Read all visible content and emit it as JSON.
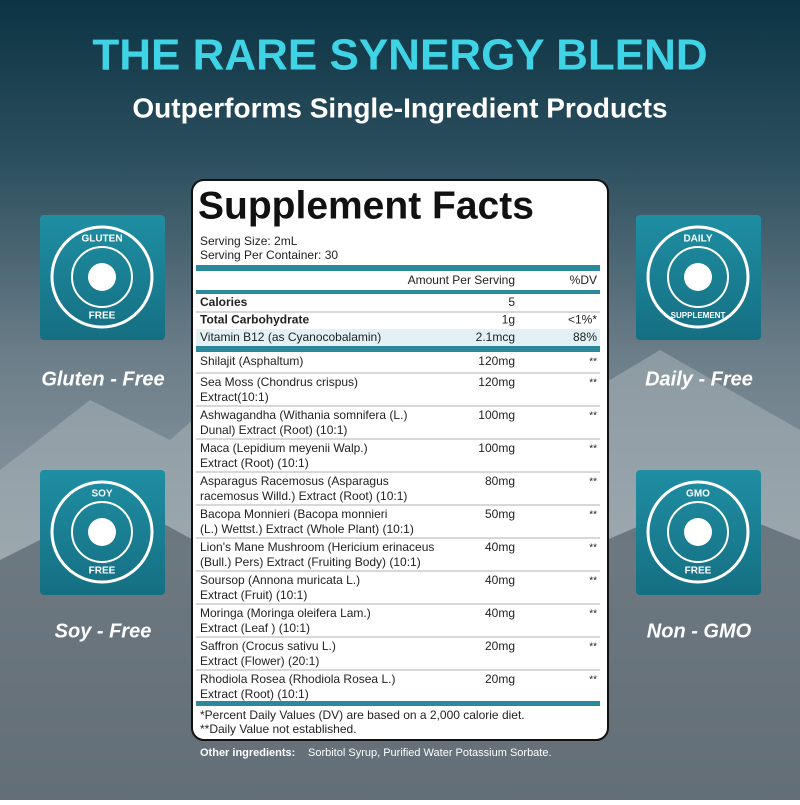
{
  "header": {
    "title": "THE RARE SYNERGY BLEND",
    "subtitle": "Outperforms Single-Ingredient Products"
  },
  "badges": [
    {
      "icon_top": "GLUTEN",
      "icon_bottom": "FREE",
      "label": "Gluten - Free"
    },
    {
      "icon_top": "DAILY",
      "icon_bottom": "SUPPLEMENT",
      "label": "Daily - Free"
    },
    {
      "icon_top": "SOY",
      "icon_bottom": "FREE",
      "label": "Soy - Free"
    },
    {
      "icon_top": "GMO",
      "icon_bottom": "FREE",
      "label": "Non - GMO"
    }
  ],
  "facts": {
    "title": "Supplement Facts",
    "serving_size": "Serving Size: 2mL",
    "servings": "Serving Per Container: 30",
    "col_amount": "Amount Per Serving",
    "col_dv": "%DV",
    "nutrients": [
      {
        "name": "Calories",
        "amount": "5"
      },
      {
        "name": "Total Carbohydrate",
        "amount": "1g",
        "dv": "<1%*"
      },
      {
        "name": "Vitamin B12 (as Cyanocobalamin)",
        "amount": "2.1mcg",
        "dv": "88%"
      }
    ],
    "ingredients": [
      {
        "name": [
          "Shilajit (Asphaltum)"
        ],
        "amount": "120mg",
        "dv": "**"
      },
      {
        "name": [
          "Sea Moss (Chondrus crispus)",
          "Extract(10:1)"
        ],
        "amount": "120mg",
        "dv": "**"
      },
      {
        "name": [
          "Ashwagandha (Withania somnifera (L.)",
          "Dunal) Extract (Root) (10:1)"
        ],
        "amount": "100mg",
        "dv": "**"
      },
      {
        "name": [
          "Maca (Lepidium meyenii Walp.)",
          "Extract (Root) (10:1)"
        ],
        "amount": "100mg",
        "dv": "**"
      },
      {
        "name": [
          "Asparagus Racemosus (Asparagus",
          "racemosus Willd.) Extract (Root) (10:1)"
        ],
        "amount": "80mg",
        "dv": "**"
      },
      {
        "name": [
          "Bacopa Monnieri (Bacopa monnieri",
          "(L.) Wettst.) Extract (Whole Plant) (10:1)"
        ],
        "amount": "50mg",
        "dv": "**"
      },
      {
        "name": [
          "Lion's Mane Mushroom (Hericium erinaceus",
          "(Bull.) Pers) Extract (Fruiting Body) (10:1)"
        ],
        "amount": "40mg",
        "dv": "**"
      },
      {
        "name": [
          "Soursop (Annona muricata L.)",
          "Extract (Fruit) (10:1)"
        ],
        "amount": "40mg",
        "dv": "**"
      },
      {
        "name": [
          "Moringa (Moringa oleifera Lam.)",
          "Extract (Leaf ) (10:1)"
        ],
        "amount": "40mg",
        "dv": "**"
      },
      {
        "name": [
          "Saffron (Crocus sativu L.)",
          "Extract (Flower) (20:1)"
        ],
        "amount": "20mg",
        "dv": "**"
      },
      {
        "name": [
          "Rhodiola Rosea (Rhodiola Rosea L.)",
          "Extract (Root) (10:1)"
        ],
        "amount": "20mg",
        "dv": "**"
      }
    ],
    "footnotes": [
      "*Percent Daily Values (DV) are based on a 2,000 calorie diet.",
      "**Daily Value not established."
    ],
    "other_label": "Other ingredients:",
    "other_text": "Sorbitol Syrup, Purified Water Potassium Sorbate."
  }
}
